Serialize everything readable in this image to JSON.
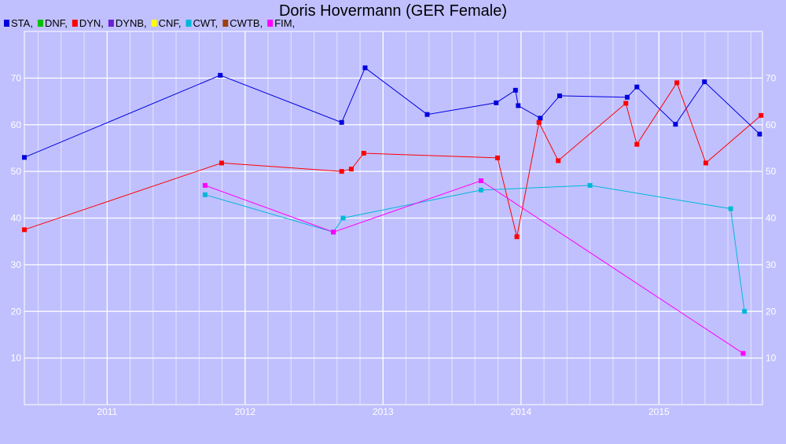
{
  "chart_data": {
    "type": "line",
    "title": "Doris Hovermann (GER Female)",
    "xlabel": "",
    "ylabel": "",
    "x_ticks": [
      "2011",
      "2012",
      "2013",
      "2014",
      "2015"
    ],
    "y_ticks": [
      "10",
      "20",
      "30",
      "40",
      "50",
      "60",
      "70"
    ],
    "xlim": [
      2010.4,
      2015.75
    ],
    "ylim": [
      0,
      80
    ],
    "grid": true,
    "legend_position": "top-left",
    "legend": [
      {
        "label": "STA,",
        "color": "#0000dd"
      },
      {
        "label": "DNF,",
        "color": "#00c000"
      },
      {
        "label": "DYN,",
        "color": "#ff0000"
      },
      {
        "label": "DYNB,",
        "color": "#6a1fd6"
      },
      {
        "label": "CNF,",
        "color": "#ffff00"
      },
      {
        "label": "CWT,",
        "color": "#00b8d8"
      },
      {
        "label": "CWTB,",
        "color": "#a04010"
      },
      {
        "label": "FIM,",
        "color": "#ff00ff"
      }
    ],
    "series": [
      {
        "name": "STA",
        "color": "#0000dd",
        "points": [
          [
            2010.4,
            53
          ],
          [
            2011.82,
            70.6
          ],
          [
            2012.7,
            60.5
          ],
          [
            2012.87,
            72.2
          ],
          [
            2013.32,
            62.2
          ],
          [
            2013.82,
            64.7
          ],
          [
            2013.96,
            67.4
          ],
          [
            2013.98,
            64.1
          ],
          [
            2014.14,
            61.4
          ],
          [
            2014.28,
            66.2
          ],
          [
            2014.77,
            65.9
          ],
          [
            2014.84,
            68.1
          ],
          [
            2015.12,
            60.1
          ],
          [
            2015.33,
            69.2
          ],
          [
            2015.73,
            58
          ]
        ]
      },
      {
        "name": "DYN",
        "color": "#ff0000",
        "points": [
          [
            2010.4,
            37.5
          ],
          [
            2011.83,
            51.8
          ],
          [
            2012.7,
            50
          ],
          [
            2012.77,
            50.5
          ],
          [
            2012.86,
            53.9
          ],
          [
            2013.83,
            52.9
          ],
          [
            2013.97,
            36
          ],
          [
            2014.13,
            60.5
          ],
          [
            2014.27,
            52.3
          ],
          [
            2014.76,
            64.6
          ],
          [
            2014.84,
            55.8
          ],
          [
            2015.13,
            69
          ],
          [
            2015.34,
            51.8
          ],
          [
            2015.74,
            62
          ]
        ]
      },
      {
        "name": "CWT",
        "color": "#00b8d8",
        "points": [
          [
            2011.71,
            45
          ],
          [
            2012.64,
            37
          ],
          [
            2012.71,
            40
          ],
          [
            2013.71,
            46
          ],
          [
            2014.5,
            47
          ],
          [
            2015.52,
            42
          ],
          [
            2015.62,
            20
          ]
        ]
      },
      {
        "name": "FIM",
        "color": "#ff00ff",
        "points": [
          [
            2011.71,
            47
          ],
          [
            2012.64,
            37
          ],
          [
            2013.71,
            48
          ],
          [
            2015.61,
            11
          ]
        ]
      }
    ]
  }
}
